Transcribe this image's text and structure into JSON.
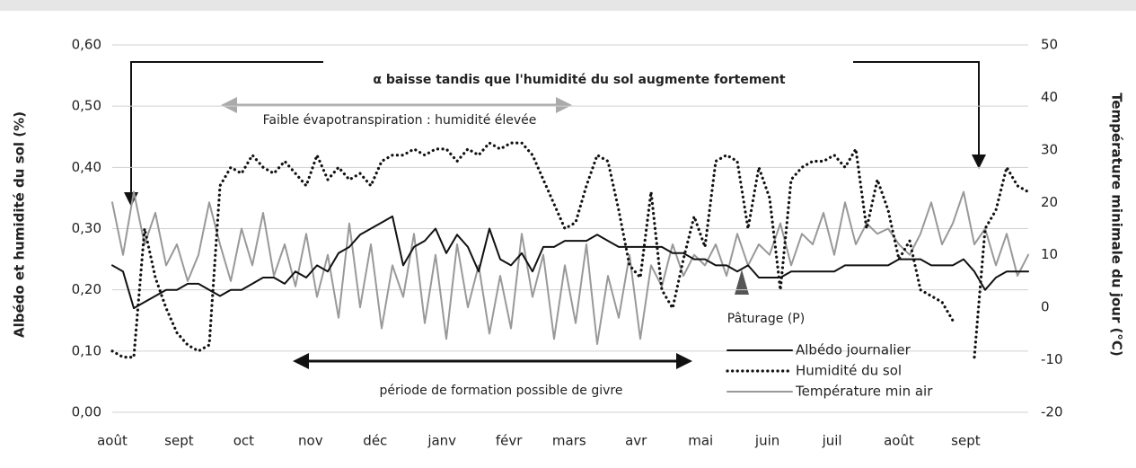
{
  "chart_data": {
    "type": "line",
    "ylabel": "Albédo et humidité du sol (%)",
    "y2label": "Température minimale du jour (°C)",
    "annotations": [
      "α baisse tandis que l'humidité du sol augmente fortement",
      "Faible évapotranspiration : humidité élevée",
      "période de formation possible de givre",
      "Pâturage (P)"
    ],
    "xlim": [
      0,
      425
    ],
    "xticks": [
      {
        "value": 0,
        "label": "août"
      },
      {
        "value": 31,
        "label": "sept"
      },
      {
        "value": 61,
        "label": "oct"
      },
      {
        "value": 92,
        "label": "nov"
      },
      {
        "value": 122,
        "label": "déc"
      },
      {
        "value": 153,
        "label": "janv"
      },
      {
        "value": 184,
        "label": "févr"
      },
      {
        "value": 212,
        "label": "mars"
      },
      {
        "value": 243,
        "label": "avr"
      },
      {
        "value": 273,
        "label": "mai"
      },
      {
        "value": 304,
        "label": "juin"
      },
      {
        "value": 334,
        "label": "juil"
      },
      {
        "value": 365,
        "label": "août"
      },
      {
        "value": 396,
        "label": "sept"
      }
    ],
    "ylim": [
      0,
      0.6
    ],
    "yticks": [
      {
        "value": 0,
        "label": "0,00"
      },
      {
        "value": 0.1,
        "label": "0,10"
      },
      {
        "value": 0.2,
        "label": "0,20"
      },
      {
        "value": 0.3,
        "label": "0,30"
      },
      {
        "value": 0.4,
        "label": "0,40"
      },
      {
        "value": 0.5,
        "label": "0,50"
      },
      {
        "value": 0.6,
        "label": "0,60"
      }
    ],
    "y2lim": [
      -20,
      50
    ],
    "y2ticks": [
      -20,
      -10,
      0,
      10,
      20,
      30,
      40,
      50
    ],
    "grid": true,
    "legend": "lower right",
    "x": [
      0,
      5,
      10,
      15,
      20,
      25,
      30,
      35,
      40,
      45,
      50,
      55,
      60,
      65,
      70,
      75,
      80,
      85,
      90,
      95,
      100,
      105,
      110,
      115,
      120,
      125,
      130,
      135,
      140,
      145,
      150,
      155,
      160,
      165,
      170,
      175,
      180,
      185,
      190,
      195,
      200,
      205,
      210,
      215,
      220,
      225,
      230,
      235,
      240,
      245,
      250,
      255,
      260,
      265,
      270,
      275,
      280,
      285,
      290,
      295,
      300,
      305,
      310,
      315,
      320,
      325,
      330,
      335,
      340,
      345,
      350,
      355,
      360,
      365,
      370,
      375,
      380,
      385,
      390,
      395,
      400,
      405,
      410,
      415,
      420,
      425
    ],
    "series": [
      {
        "name": "Albédo journalier",
        "color": "#111111",
        "style": "solid",
        "axis": "y",
        "values": [
          0.24,
          0.23,
          0.17,
          0.18,
          0.19,
          0.2,
          0.2,
          0.21,
          0.21,
          0.2,
          0.19,
          0.2,
          0.2,
          0.21,
          0.22,
          0.22,
          0.21,
          0.23,
          0.22,
          0.24,
          0.23,
          0.26,
          0.27,
          0.29,
          0.3,
          0.31,
          0.32,
          0.24,
          0.27,
          0.28,
          0.3,
          0.26,
          0.29,
          0.27,
          0.23,
          0.3,
          0.25,
          0.24,
          0.26,
          0.23,
          0.27,
          0.27,
          0.28,
          0.28,
          0.28,
          0.29,
          0.28,
          0.27,
          0.27,
          0.27,
          0.27,
          0.27,
          0.26,
          0.26,
          0.25,
          0.25,
          0.24,
          0.24,
          0.23,
          0.24,
          0.22,
          0.22,
          0.22,
          0.23,
          0.23,
          0.23,
          0.23,
          0.23,
          0.24,
          0.24,
          0.24,
          0.24,
          0.24,
          0.25,
          0.25,
          0.25,
          0.24,
          0.24,
          0.24,
          0.25,
          0.23,
          0.2,
          0.22,
          0.23,
          0.23,
          0.23
        ]
      },
      {
        "name": "Humidité du sol",
        "color": "#111111",
        "style": "dotted",
        "axis": "y",
        "values": [
          0.1,
          0.09,
          0.09,
          0.3,
          0.22,
          0.17,
          0.13,
          0.11,
          0.1,
          0.11,
          0.37,
          0.4,
          0.39,
          0.42,
          0.4,
          0.39,
          0.41,
          0.39,
          0.37,
          0.42,
          0.38,
          0.4,
          0.38,
          0.39,
          0.37,
          0.41,
          0.42,
          0.42,
          0.43,
          0.42,
          0.43,
          0.43,
          0.41,
          0.43,
          0.42,
          0.44,
          0.43,
          0.44,
          0.44,
          0.42,
          0.38,
          0.34,
          0.3,
          0.31,
          0.37,
          0.42,
          0.41,
          0.33,
          0.24,
          0.22,
          0.36,
          0.2,
          0.17,
          0.25,
          0.32,
          0.27,
          0.41,
          0.42,
          0.41,
          0.3,
          0.4,
          0.35,
          0.2,
          0.38,
          0.4,
          0.41,
          0.41,
          0.42,
          0.4,
          0.43,
          0.3,
          0.38,
          0.33,
          0.25,
          0.28,
          0.2,
          0.19,
          0.18,
          0.15,
          null,
          0.09,
          0.3,
          0.33,
          0.4,
          0.37,
          0.36
        ]
      },
      {
        "name": "Température min air",
        "color": "#999999",
        "style": "solid",
        "axis": "y2",
        "values": [
          20,
          10,
          22,
          12,
          18,
          8,
          12,
          5,
          10,
          20,
          12,
          5,
          15,
          8,
          18,
          6,
          12,
          4,
          14,
          2,
          10,
          -2,
          16,
          0,
          12,
          -4,
          8,
          2,
          14,
          -3,
          10,
          -6,
          12,
          0,
          8,
          -5,
          6,
          -4,
          14,
          2,
          10,
          -6,
          8,
          -3,
          12,
          -7,
          6,
          -2,
          10,
          -6,
          8,
          4,
          12,
          6,
          10,
          8,
          12,
          6,
          14,
          8,
          12,
          10,
          16,
          8,
          14,
          12,
          18,
          10,
          20,
          12,
          16,
          14,
          15,
          12,
          10,
          14,
          20,
          12,
          16,
          22,
          12,
          15,
          8,
          14,
          6,
          10
        ]
      }
    ]
  }
}
